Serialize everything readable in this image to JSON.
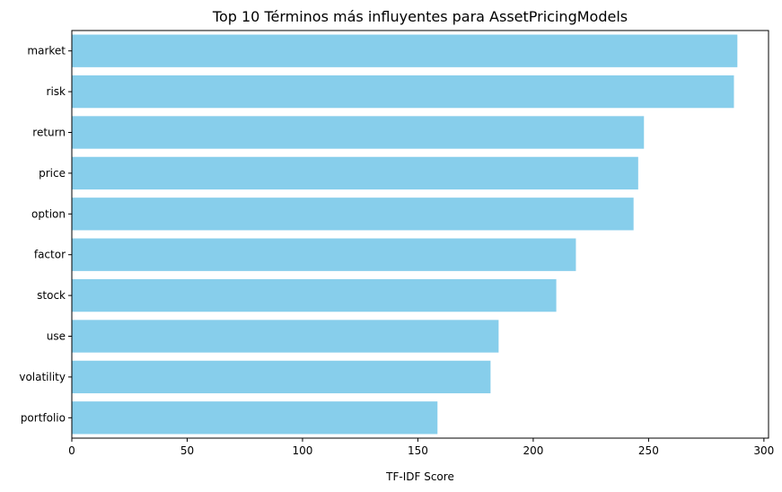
{
  "chart_data": {
    "type": "bar",
    "orientation": "horizontal",
    "title": "Top 10 Términos más influyentes para AssetPricingModels",
    "xlabel": "TF-IDF Score",
    "ylabel": "",
    "xlim": [
      0,
      302
    ],
    "xticks": [
      0,
      50,
      100,
      150,
      200,
      250,
      300
    ],
    "categories": [
      "market",
      "risk",
      "return",
      "price",
      "option",
      "factor",
      "stock",
      "use",
      "volatility",
      "portfolio"
    ],
    "values": [
      288.5,
      287,
      248,
      245.5,
      243.5,
      218.5,
      210,
      185,
      181.5,
      158.5
    ],
    "bar_color": "#87ceeb",
    "grid": false,
    "legend": "none"
  }
}
